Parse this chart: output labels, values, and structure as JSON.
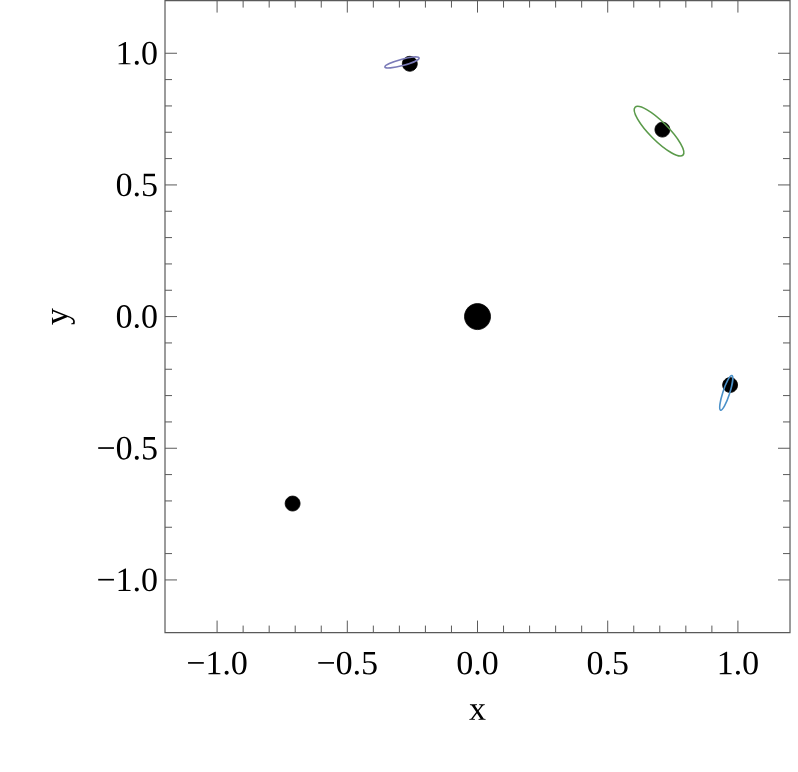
{
  "chart_data": {
    "type": "bubble",
    "xlabel": "x",
    "ylabel": "y",
    "xlim": [
      -1.2,
      1.2
    ],
    "ylim": [
      -1.2,
      1.2
    ],
    "xticks": [
      {
        "value": -1.0,
        "label": "−1.0"
      },
      {
        "value": -0.5,
        "label": "−0.5"
      },
      {
        "value": 0.0,
        "label": "0.0"
      },
      {
        "value": 0.5,
        "label": "0.5"
      },
      {
        "value": 1.0,
        "label": "1.0"
      }
    ],
    "yticks": [
      {
        "value": -1.0,
        "label": "−1.0"
      },
      {
        "value": -0.5,
        "label": "−0.5"
      },
      {
        "value": 0.0,
        "label": "0.0"
      },
      {
        "value": 0.5,
        "label": "0.5"
      },
      {
        "value": 1.0,
        "label": "1.0"
      }
    ],
    "series": [
      {
        "color": "#000000",
        "x": [
          0.0,
          -0.71,
          -0.26,
          0.71,
          0.97
        ],
        "values": [
          0.0,
          -0.71,
          0.96,
          0.71,
          -0.26
        ],
        "sizes": [
          1,
          0.33,
          0.33,
          0.33,
          0.33
        ]
      }
    ]
  }
}
